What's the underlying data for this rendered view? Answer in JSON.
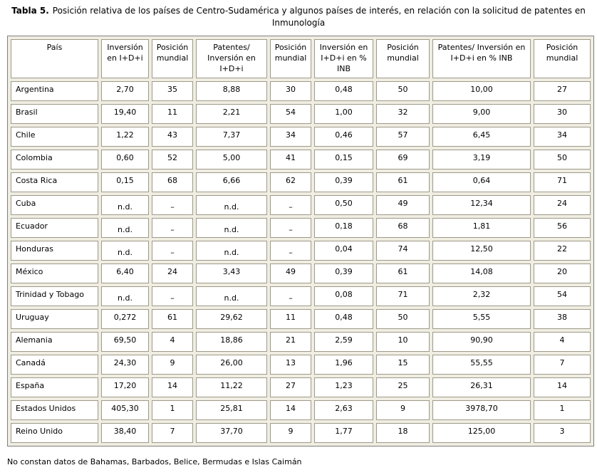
{
  "title": {
    "label": "Tabla 5.",
    "text": "Posición relativa de los países de Centro-Sudamérica y algunos países de interés, en relación con la solicitud de patentes en Inmunología"
  },
  "table": {
    "headers": [
      "País",
      "Inversión en I+D+i",
      "Posición mundial",
      "Patentes/ Inversión en I+D+i",
      "Posición mundial",
      "Inversión en I+D+i en % INB",
      "Posición mundial",
      "Patentes/ Inversión en I+D+i en % INB",
      "Posición mundial"
    ],
    "na_values": [
      "n.d.",
      "–"
    ],
    "rows": [
      [
        "Argentina",
        "2,70",
        "35",
        "8,88",
        "30",
        "0,48",
        "50",
        "10,00",
        "27"
      ],
      [
        "Brasil",
        "19,40",
        "11",
        "2,21",
        "54",
        "1,00",
        "32",
        "9,00",
        "30"
      ],
      [
        "Chile",
        "1,22",
        "43",
        "7,37",
        "34",
        "0,46",
        "57",
        "6,45",
        "34"
      ],
      [
        "Colombia",
        "0,60",
        "52",
        "5,00",
        "41",
        "0,15",
        "69",
        "3,19",
        "50"
      ],
      [
        "Costa Rica",
        "0,15",
        "68",
        "6,66",
        "62",
        "0,39",
        "61",
        "0,64",
        "71"
      ],
      [
        "Cuba",
        "n.d.",
        "–",
        "n.d.",
        "–",
        "0,50",
        "49",
        "12,34",
        "24"
      ],
      [
        "Ecuador",
        "n.d.",
        "–",
        "n.d.",
        "–",
        "0,18",
        "68",
        "1,81",
        "56"
      ],
      [
        "Honduras",
        "n.d.",
        "–",
        "n.d.",
        "–",
        "0,04",
        "74",
        "12,50",
        "22"
      ],
      [
        "México",
        "6,40",
        "24",
        "3,43",
        "49",
        "0,39",
        "61",
        "14,08",
        "20"
      ],
      [
        "Trinidad y Tobago",
        "n.d.",
        "–",
        "n.d.",
        "–",
        "0,08",
        "71",
        "2,32",
        "54"
      ],
      [
        "Uruguay",
        "0,272",
        "61",
        "29,62",
        "11",
        "0,48",
        "50",
        "5,55",
        "38"
      ],
      [
        "Alemania",
        "69,50",
        "4",
        "18,86",
        "21",
        "2,59",
        "10",
        "90,90",
        "4"
      ],
      [
        "Canadá",
        "24,30",
        "9",
        "26,00",
        "13",
        "1,96",
        "15",
        "55,55",
        "7"
      ],
      [
        "España",
        "17,20",
        "14",
        "11,22",
        "27",
        "1,23",
        "25",
        "26,31",
        "14"
      ],
      [
        "Estados Unidos",
        "405,30",
        "1",
        "25,81",
        "14",
        "2,63",
        "9",
        "3978,70",
        "1"
      ],
      [
        "Reino Unido",
        "38,40",
        "7",
        "37,70",
        "9",
        "1,77",
        "18",
        "125,00",
        "3"
      ]
    ]
  },
  "footnote": "No constan datos de Bahamas, Barbados, Belice, Bermudas e Islas Caimán",
  "colors": {
    "cell_border": "#9e9a89",
    "table_gap_background": "#f0ede2",
    "outer_border": "#808080",
    "cell_background": "#ffffff",
    "text": "#000000"
  }
}
